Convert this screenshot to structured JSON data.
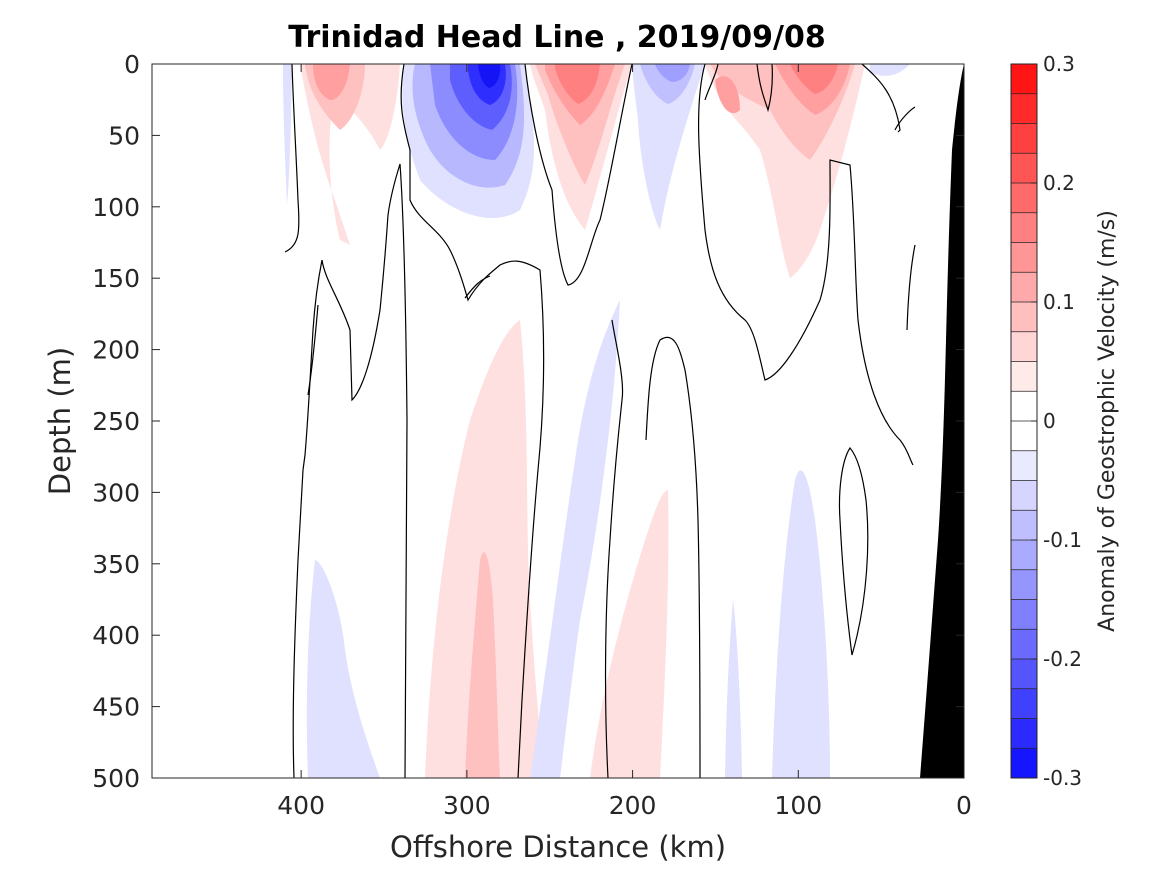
{
  "chart_data": {
    "type": "heatmap",
    "title": "Trinidad Head Line , 2019/09/08",
    "xlabel": "Offshore Distance (km)",
    "ylabel": "Depth (m)",
    "xlim": [
      490,
      0
    ],
    "ylim": [
      0,
      500
    ],
    "xticks": [
      "400",
      "300",
      "200",
      "100",
      "0"
    ],
    "yticks": [
      "0",
      "50",
      "100",
      "150",
      "200",
      "250",
      "300",
      "350",
      "400",
      "450",
      "500"
    ],
    "colorbar": {
      "label": "Anomaly of Geostrophic Velocity (m/s)",
      "range": [
        -0.3,
        0.3
      ],
      "ticks": [
        "0.3",
        "0.2",
        "0.1",
        "0",
        "-0.1",
        "-0.2",
        "-0.3"
      ],
      "levels": 24,
      "negative_color": "#0000ff",
      "positive_color": "#ff0000",
      "neutral_color": "#ffffff"
    },
    "features": [
      {
        "kind": "core",
        "sign": "negative",
        "x_km": 288,
        "depth_m": 5,
        "peak": -0.24
      },
      {
        "kind": "core",
        "sign": "positive",
        "x_km": 240,
        "depth_m": 10,
        "peak": 0.14
      },
      {
        "kind": "core",
        "sign": "positive",
        "x_km": 385,
        "depth_m": 15,
        "peak": 0.09
      },
      {
        "kind": "core",
        "sign": "positive",
        "x_km": 95,
        "depth_m": 10,
        "peak": 0.13
      },
      {
        "kind": "core",
        "sign": "positive",
        "x_km": 165,
        "depth_m": 30,
        "peak": 0.08
      },
      {
        "kind": "core",
        "sign": "negative",
        "x_km": 190,
        "depth_m": 10,
        "peak": -0.08
      },
      {
        "kind": "core",
        "sign": "positive",
        "x_km": 300,
        "depth_m": 350,
        "peak": 0.05
      },
      {
        "kind": "core",
        "sign": "positive",
        "x_km": 225,
        "depth_m": 400,
        "peak": 0.03
      },
      {
        "kind": "core",
        "sign": "negative",
        "x_km": 225,
        "depth_m": 300,
        "peak": -0.03
      },
      {
        "kind": "core",
        "sign": "negative",
        "x_km": 370,
        "depth_m": 420,
        "peak": -0.03
      },
      {
        "kind": "core",
        "sign": "negative",
        "x_km": 95,
        "depth_m": 400,
        "peak": -0.03
      }
    ],
    "bathymetry": {
      "color": "#000000",
      "bottom_x_km": [
        0,
        30
      ],
      "top_x_km": 0,
      "top_depth_m": 0
    }
  }
}
